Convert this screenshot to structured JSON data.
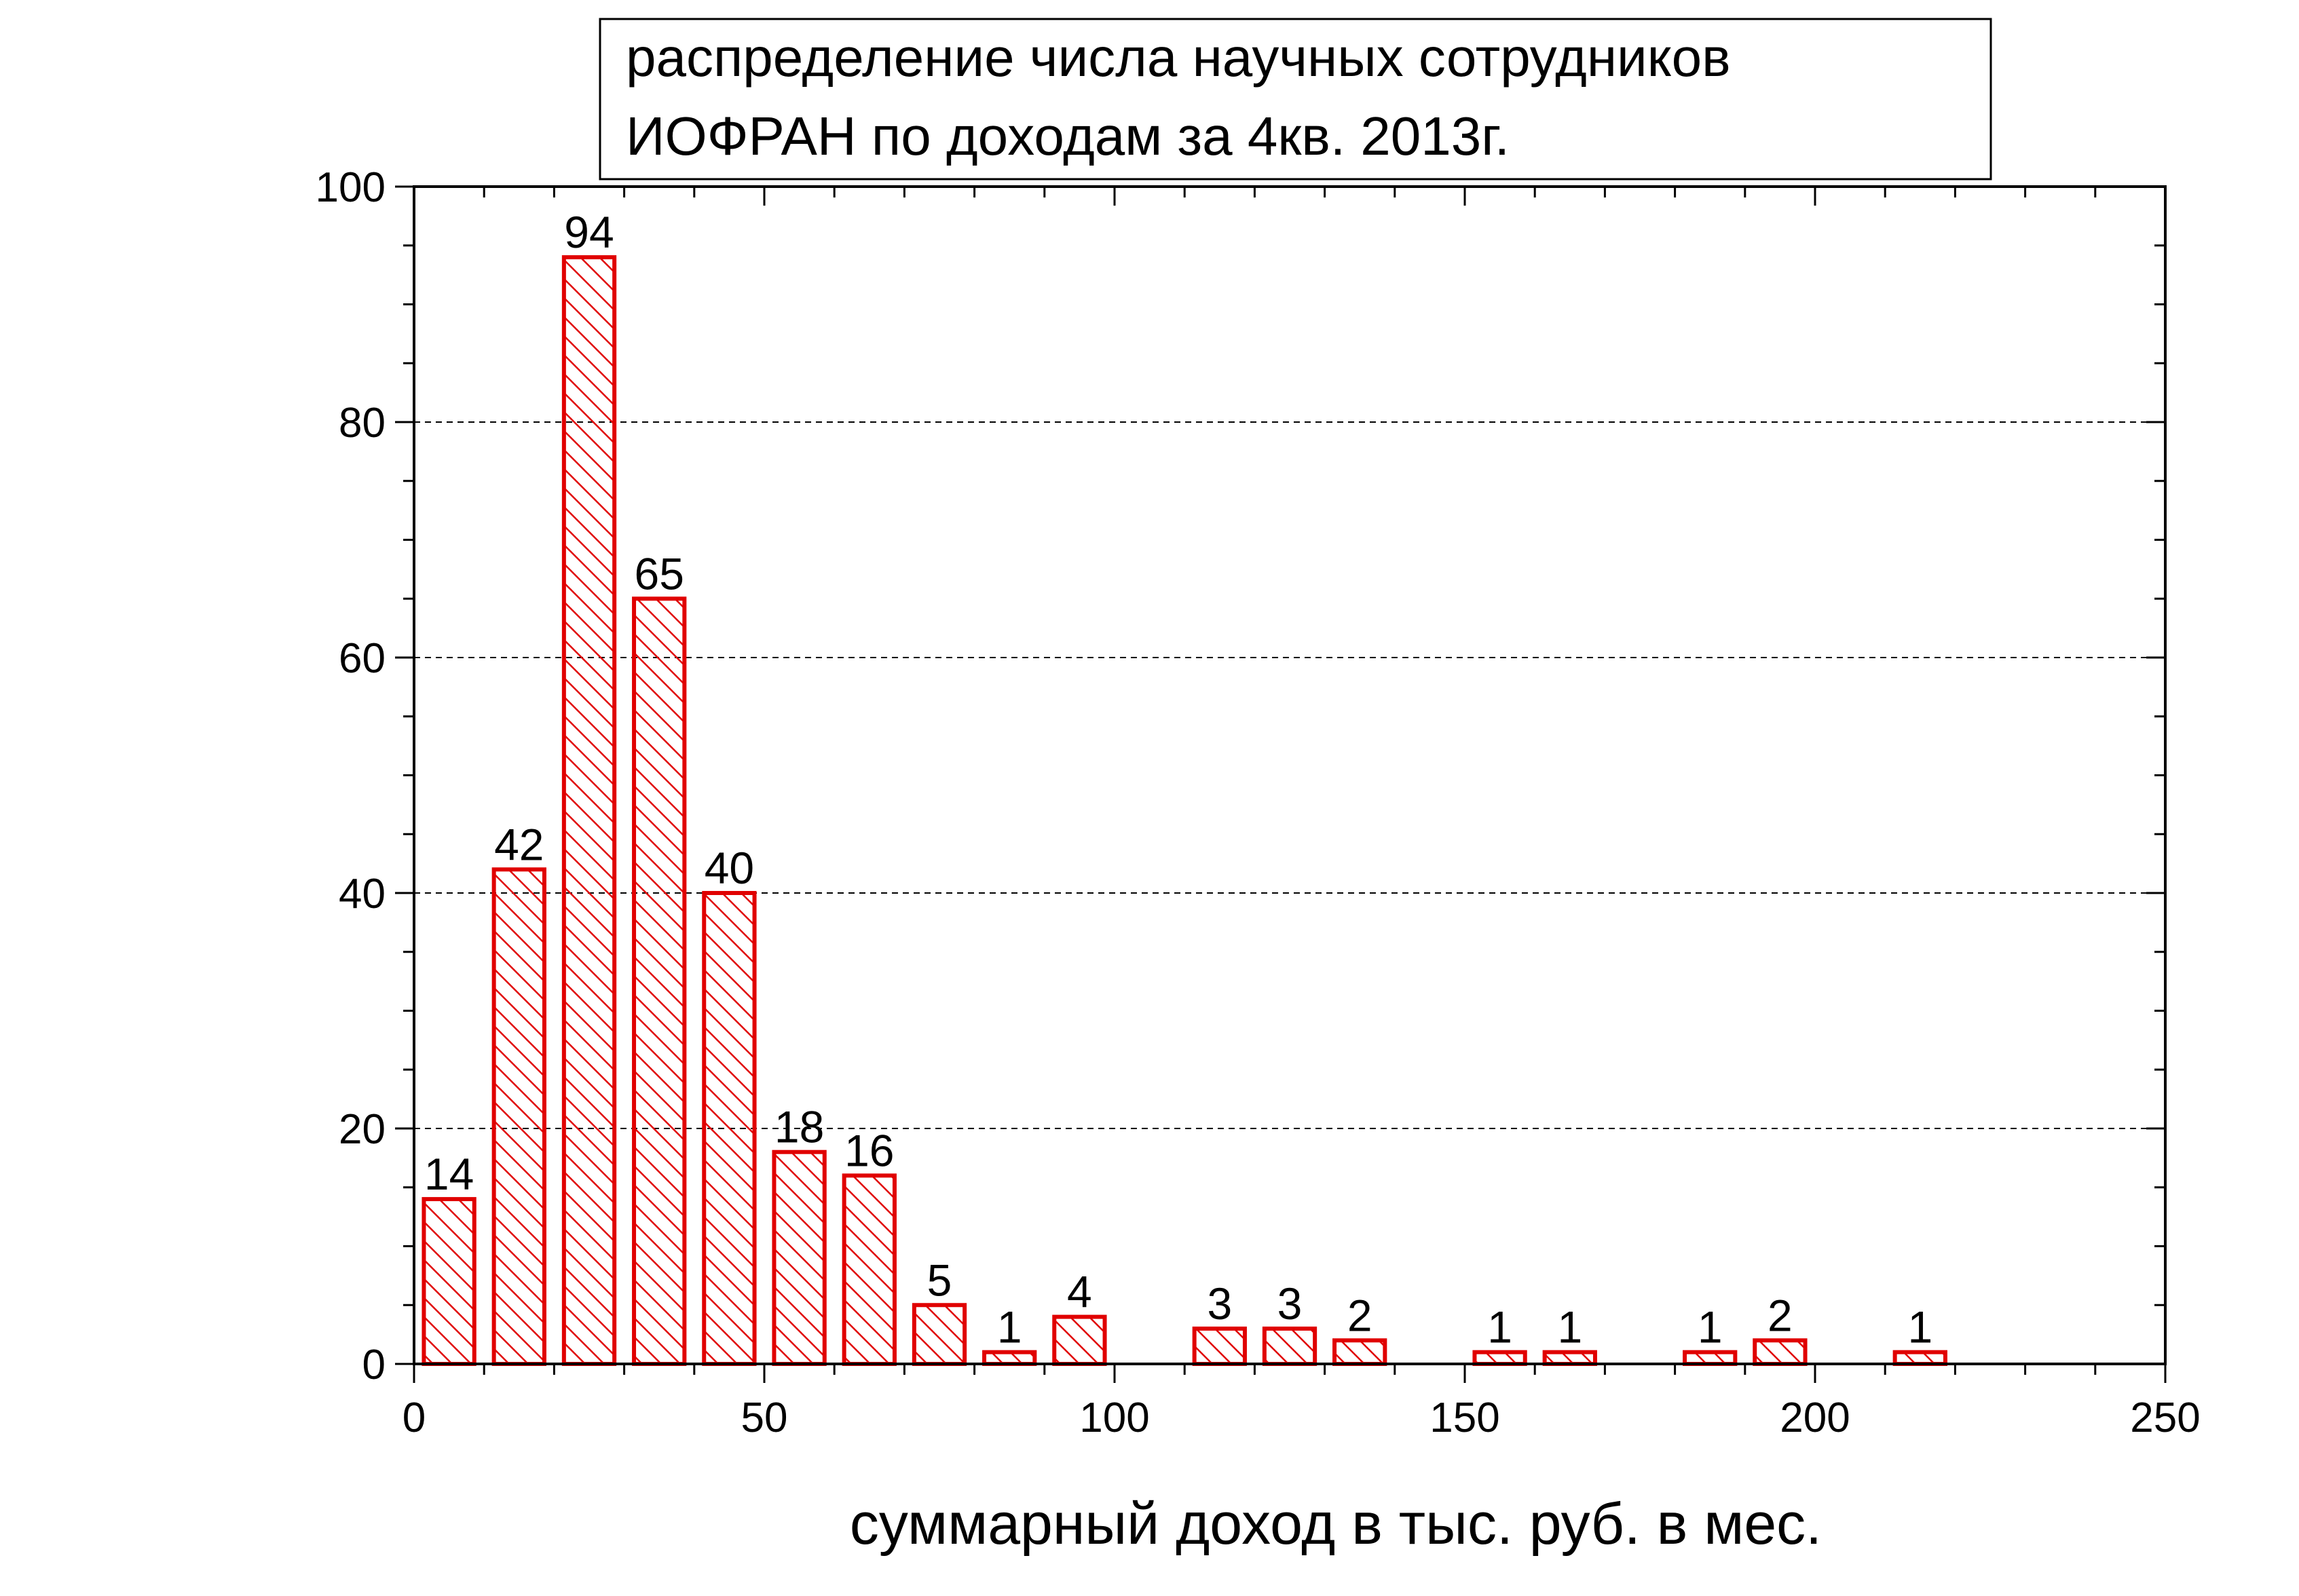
{
  "chart_data": {
    "type": "bar",
    "title": "распределение числа научных сотрудников ИОФРАН по доходам за 4кв. 2013г.",
    "title_lines": [
      "распределение числа научных сотрудников",
      "ИОФРАН по доходам за 4кв. 2013г."
    ],
    "xlabel": "суммарный доход в тыс. руб. в мес.",
    "ylabel": "",
    "xlim": [
      0,
      250
    ],
    "ylim": [
      0,
      100
    ],
    "xticks": [
      "0",
      "50",
      "100",
      "150",
      "200",
      "250"
    ],
    "yticks": [
      "0",
      "20",
      "40",
      "60",
      "80",
      "100"
    ],
    "bin_width": 10,
    "grid": "horizontal dashed",
    "bar_color": "#e00000",
    "bar_fill": "hatched",
    "bars": [
      {
        "x": 5,
        "value": 14,
        "label": "14"
      },
      {
        "x": 15,
        "value": 42,
        "label": "42"
      },
      {
        "x": 25,
        "value": 94,
        "label": "94"
      },
      {
        "x": 35,
        "value": 65,
        "label": "65"
      },
      {
        "x": 45,
        "value": 40,
        "label": "40"
      },
      {
        "x": 55,
        "value": 18,
        "label": "18"
      },
      {
        "x": 65,
        "value": 16,
        "label": "16"
      },
      {
        "x": 75,
        "value": 5,
        "label": "5"
      },
      {
        "x": 85,
        "value": 1,
        "label": "1"
      },
      {
        "x": 95,
        "value": 4,
        "label": "4"
      },
      {
        "x": 115,
        "value": 3,
        "label": "3"
      },
      {
        "x": 125,
        "value": 3,
        "label": "3"
      },
      {
        "x": 135,
        "value": 2,
        "label": "2"
      },
      {
        "x": 155,
        "value": 1,
        "label": "1"
      },
      {
        "x": 165,
        "value": 1,
        "label": "1"
      },
      {
        "x": 185,
        "value": 1,
        "label": "1"
      },
      {
        "x": 195,
        "value": 2,
        "label": "2"
      },
      {
        "x": 215,
        "value": 1,
        "label": "1"
      }
    ]
  }
}
